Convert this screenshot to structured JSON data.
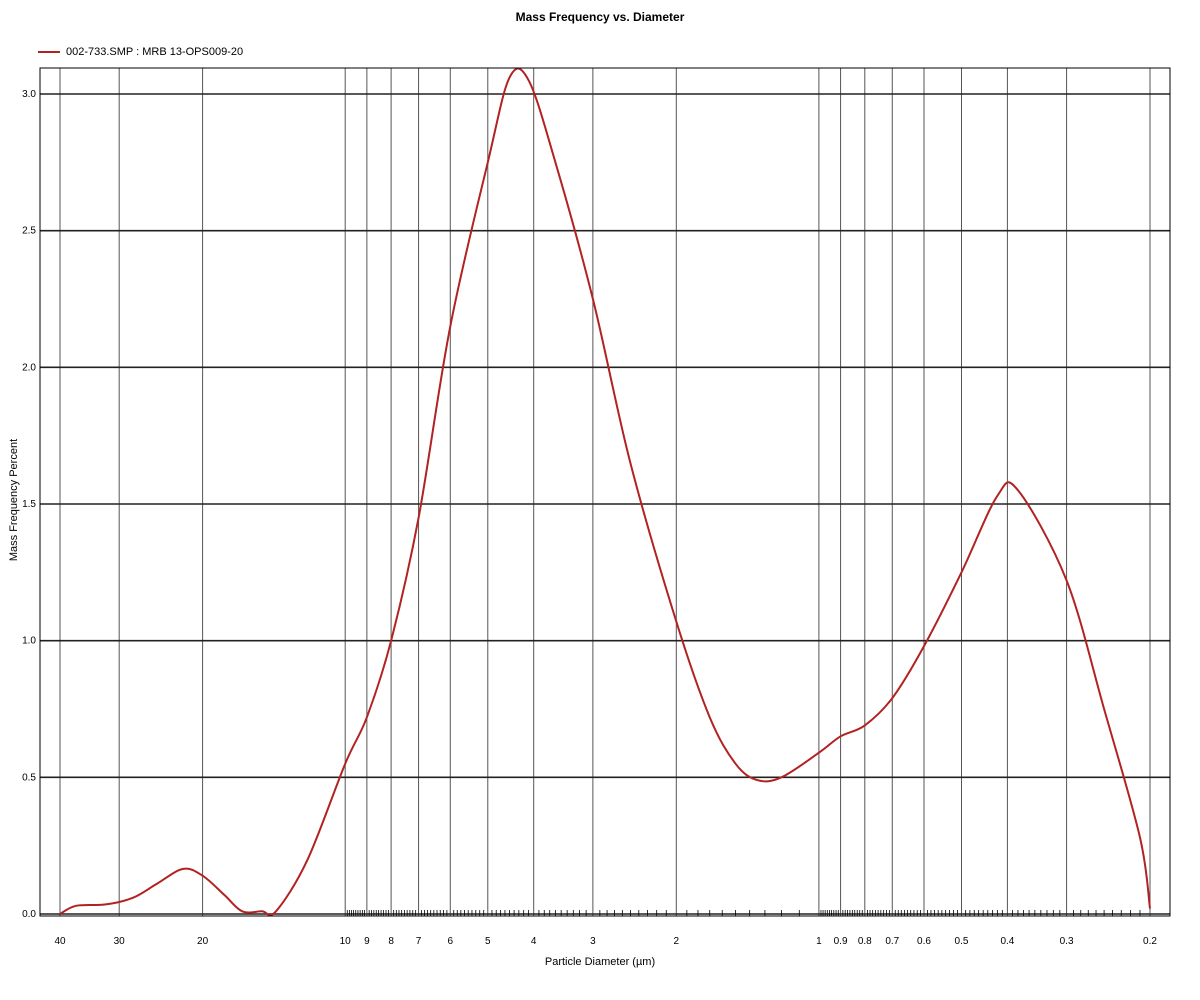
{
  "chart_data": {
    "type": "line",
    "title": "Mass Frequency vs. Diameter",
    "xlabel": "Particle Diameter (µm)",
    "ylabel": "Mass Frequency Percent",
    "x_scale": "log",
    "x_reversed": true,
    "xlim": [
      40,
      0.2
    ],
    "ylim": [
      0,
      3.0
    ],
    "grid": true,
    "legend_position": "top-left",
    "x_ticks": [
      {
        "value": 40,
        "label": "40"
      },
      {
        "value": 30,
        "label": "30"
      },
      {
        "value": 20,
        "label": "20"
      },
      {
        "value": 10,
        "label": "10"
      },
      {
        "value": 9,
        "label": "9"
      },
      {
        "value": 8,
        "label": "8"
      },
      {
        "value": 7,
        "label": "7"
      },
      {
        "value": 6,
        "label": "6"
      },
      {
        "value": 5,
        "label": "5"
      },
      {
        "value": 4,
        "label": "4"
      },
      {
        "value": 3,
        "label": "3"
      },
      {
        "value": 2,
        "label": "2"
      },
      {
        "value": 1,
        "label": "1"
      },
      {
        "value": 0.9,
        "label": "0.9"
      },
      {
        "value": 0.8,
        "label": "0.8"
      },
      {
        "value": 0.7,
        "label": "0.7"
      },
      {
        "value": 0.6,
        "label": "0.6"
      },
      {
        "value": 0.5,
        "label": "0.5"
      },
      {
        "value": 0.4,
        "label": "0.4"
      },
      {
        "value": 0.3,
        "label": "0.3"
      },
      {
        "value": 0.2,
        "label": "0.2"
      }
    ],
    "y_ticks": [
      {
        "value": 0.0,
        "label": "0.0"
      },
      {
        "value": 0.5,
        "label": "0.5"
      },
      {
        "value": 1.0,
        "label": "1.0"
      },
      {
        "value": 1.5,
        "label": "1.5"
      },
      {
        "value": 2.0,
        "label": "2.0"
      },
      {
        "value": 2.5,
        "label": "2.5"
      },
      {
        "value": 3.0,
        "label": "3.0"
      }
    ],
    "series": [
      {
        "name": "002-733.SMP : MRB 13-OPS009-20",
        "color": "#b22222",
        "points": [
          [
            40,
            0.0
          ],
          [
            37,
            0.03
          ],
          [
            32,
            0.035
          ],
          [
            28,
            0.06
          ],
          [
            25,
            0.11
          ],
          [
            22,
            0.165
          ],
          [
            20,
            0.14
          ],
          [
            18,
            0.07
          ],
          [
            16.5,
            0.01
          ],
          [
            15,
            0.01
          ],
          [
            14,
            0.01
          ],
          [
            12,
            0.2
          ],
          [
            10,
            0.55
          ],
          [
            9,
            0.72
          ],
          [
            8,
            1.0
          ],
          [
            7,
            1.45
          ],
          [
            6,
            2.15
          ],
          [
            5,
            2.75
          ],
          [
            4.5,
            3.06
          ],
          [
            4.1,
            3.05
          ],
          [
            3.6,
            2.75
          ],
          [
            3,
            2.25
          ],
          [
            2.5,
            1.65
          ],
          [
            2,
            1.07
          ],
          [
            1.7,
            0.72
          ],
          [
            1.5,
            0.55
          ],
          [
            1.35,
            0.49
          ],
          [
            1.2,
            0.5
          ],
          [
            1,
            0.59
          ],
          [
            0.9,
            0.65
          ],
          [
            0.8,
            0.69
          ],
          [
            0.7,
            0.79
          ],
          [
            0.6,
            0.98
          ],
          [
            0.5,
            1.25
          ],
          [
            0.42,
            1.53
          ],
          [
            0.38,
            1.55
          ],
          [
            0.3,
            1.22
          ],
          [
            0.25,
            0.75
          ],
          [
            0.21,
            0.28
          ],
          [
            0.2,
            0.02
          ]
        ]
      }
    ]
  }
}
